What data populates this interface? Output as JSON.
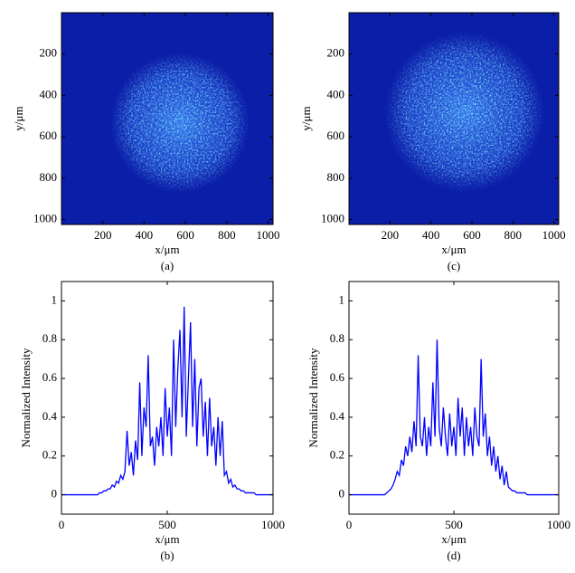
{
  "chart_data": [
    {
      "type": "image",
      "xlabel": "x/μm",
      "ylabel": "y/μm",
      "caption": "(a)",
      "color": "#0b1ea8",
      "xlim": [
        0,
        1024
      ],
      "ylim": [
        1024,
        0
      ],
      "xticks": [
        200,
        400,
        600,
        800,
        1000
      ],
      "yticks": [
        200,
        400,
        600,
        800,
        1000
      ]
    },
    {
      "type": "line",
      "xlabel": "x/μm",
      "ylabel": "Normalized Intensity",
      "caption": "(b)",
      "color": "#0000ff",
      "xlim": [
        0,
        1000
      ],
      "ylim": [
        -0.1,
        1.1
      ],
      "xticks": [
        0,
        500,
        1000
      ],
      "yticks": [
        0,
        0.2,
        0.4,
        0.6,
        0.8,
        1
      ],
      "x": [
        0,
        10,
        20,
        30,
        40,
        50,
        60,
        70,
        80,
        90,
        100,
        110,
        120,
        130,
        140,
        150,
        160,
        170,
        180,
        190,
        200,
        210,
        220,
        230,
        240,
        250,
        260,
        270,
        280,
        290,
        300,
        310,
        320,
        330,
        340,
        350,
        360,
        370,
        380,
        390,
        400,
        410,
        420,
        430,
        440,
        450,
        460,
        470,
        480,
        490,
        500,
        510,
        520,
        530,
        540,
        550,
        560,
        570,
        580,
        590,
        600,
        610,
        620,
        630,
        640,
        650,
        660,
        670,
        680,
        690,
        700,
        710,
        720,
        730,
        740,
        750,
        760,
        770,
        780,
        790,
        800,
        810,
        820,
        830,
        840,
        850,
        860,
        870,
        880,
        890,
        900,
        910,
        920,
        930,
        940,
        950,
        960,
        970,
        980,
        990,
        1000
      ],
      "values": [
        0,
        0,
        0,
        0,
        0,
        0,
        0,
        0,
        0,
        0,
        0,
        0,
        0,
        0,
        0,
        0,
        0,
        0,
        0.01,
        0.01,
        0.02,
        0.02,
        0.03,
        0.03,
        0.05,
        0.04,
        0.07,
        0.06,
        0.1,
        0.08,
        0.12,
        0.33,
        0.15,
        0.22,
        0.1,
        0.28,
        0.18,
        0.58,
        0.2,
        0.45,
        0.35,
        0.72,
        0.25,
        0.3,
        0.15,
        0.35,
        0.25,
        0.4,
        0.2,
        0.55,
        0.3,
        0.45,
        0.2,
        0.8,
        0.35,
        0.65,
        0.85,
        0.4,
        0.97,
        0.3,
        0.6,
        0.89,
        0.35,
        0.7,
        0.25,
        0.55,
        0.6,
        0.3,
        0.48,
        0.2,
        0.5,
        0.25,
        0.35,
        0.15,
        0.4,
        0.2,
        0.38,
        0.1,
        0.12,
        0.06,
        0.08,
        0.04,
        0.05,
        0.03,
        0.03,
        0.02,
        0.02,
        0.01,
        0.01,
        0.01,
        0.01,
        0.01,
        0,
        0,
        0,
        0,
        0,
        0,
        0,
        0,
        0
      ]
    },
    {
      "type": "image",
      "xlabel": "x/μm",
      "ylabel": "y/μm",
      "caption": "(c)",
      "color": "#0b1ea8",
      "xlim": [
        0,
        1024
      ],
      "ylim": [
        1024,
        0
      ],
      "xticks": [
        200,
        400,
        600,
        800,
        1000
      ],
      "yticks": [
        200,
        400,
        600,
        800,
        1000
      ]
    },
    {
      "type": "line",
      "xlabel": "x/μm",
      "ylabel": "Normalized Intensity",
      "caption": "(d)",
      "color": "#0000ff",
      "xlim": [
        0,
        1000
      ],
      "ylim": [
        -0.1,
        1.1
      ],
      "xticks": [
        0,
        500,
        1000
      ],
      "yticks": [
        0,
        0.2,
        0.4,
        0.6,
        0.8,
        1
      ],
      "x": [
        0,
        10,
        20,
        30,
        40,
        50,
        60,
        70,
        80,
        90,
        100,
        110,
        120,
        130,
        140,
        150,
        160,
        170,
        180,
        190,
        200,
        210,
        220,
        230,
        240,
        250,
        260,
        270,
        280,
        290,
        300,
        310,
        320,
        330,
        340,
        350,
        360,
        370,
        380,
        390,
        400,
        410,
        420,
        430,
        440,
        450,
        460,
        470,
        480,
        490,
        500,
        510,
        520,
        530,
        540,
        550,
        560,
        570,
        580,
        590,
        600,
        610,
        620,
        630,
        640,
        650,
        660,
        670,
        680,
        690,
        700,
        710,
        720,
        730,
        740,
        750,
        760,
        770,
        780,
        790,
        800,
        810,
        820,
        830,
        840,
        850,
        860,
        870,
        880,
        890,
        900,
        910,
        920,
        930,
        940,
        950,
        960,
        970,
        980,
        990,
        1000
      ],
      "values": [
        0,
        0,
        0,
        0,
        0,
        0,
        0,
        0,
        0,
        0,
        0,
        0,
        0,
        0,
        0,
        0,
        0,
        0,
        0.01,
        0.02,
        0.03,
        0.05,
        0.08,
        0.12,
        0.1,
        0.18,
        0.15,
        0.25,
        0.2,
        0.3,
        0.22,
        0.38,
        0.25,
        0.72,
        0.3,
        0.25,
        0.4,
        0.2,
        0.35,
        0.25,
        0.58,
        0.3,
        0.8,
        0.35,
        0.25,
        0.45,
        0.3,
        0.2,
        0.42,
        0.25,
        0.35,
        0.2,
        0.5,
        0.3,
        0.45,
        0.2,
        0.4,
        0.25,
        0.35,
        0.2,
        0.45,
        0.3,
        0.25,
        0.7,
        0.3,
        0.42,
        0.2,
        0.3,
        0.15,
        0.25,
        0.12,
        0.2,
        0.08,
        0.15,
        0.05,
        0.12,
        0.04,
        0.03,
        0.02,
        0.02,
        0.01,
        0.01,
        0.01,
        0.01,
        0.01,
        0,
        0,
        0,
        0,
        0,
        0,
        0,
        0,
        0,
        0,
        0,
        0,
        0,
        0,
        0,
        0
      ]
    }
  ]
}
